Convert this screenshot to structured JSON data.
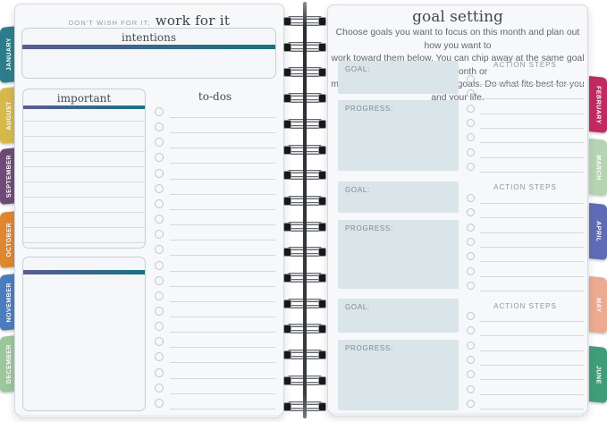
{
  "left_page": {
    "quote": {
      "prefix": "DON'T WISH FOR IT;",
      "emphasis": "work for it"
    },
    "intentions": {
      "title": "intentions"
    },
    "important": {
      "title": "important",
      "ruled_lines": 9
    },
    "todos": {
      "title": "to-dos",
      "rows": 20
    },
    "notes_box": {
      "title": ""
    }
  },
  "right_page": {
    "title": "goal setting",
    "intro_lines": [
      "Choose goals you want to focus on this month and plan out how you want to",
      "work toward them below. You can chip away at the same goal each month or",
      "mix it up and work on different goals. Do what fits best for you and your life."
    ],
    "sections": [
      {
        "goal_label": "GOAL:",
        "progress_label": "PROGRESS:",
        "action_steps_label": "ACTION STEPS",
        "action_rows": 7
      },
      {
        "goal_label": "GOAL:",
        "progress_label": "PROGRESS:",
        "action_steps_label": "ACTION STEPS",
        "action_rows": 7
      },
      {
        "goal_label": "GOAL:",
        "progress_label": "PROGRESS:",
        "action_steps_label": "ACTION STEPS",
        "action_rows": 7
      }
    ]
  },
  "tabs": {
    "left": [
      {
        "label": "JANUARY",
        "color": "#2c7d8b"
      },
      {
        "label": "AUGUST",
        "color": "#d7b84b"
      },
      {
        "label": "SEPTEMBER",
        "color": "#6e4a78"
      },
      {
        "label": "OCTOBER",
        "color": "#de8630"
      },
      {
        "label": "NOVEMBER",
        "color": "#4b7cbd"
      },
      {
        "label": "DECEMBER",
        "color": "#9cc69c"
      }
    ],
    "right": [
      {
        "label": "FEBRUARY",
        "color": "#c02a61"
      },
      {
        "label": "MARCH",
        "color": "#b6d4b2"
      },
      {
        "label": "APRIL",
        "color": "#5e6cb7"
      },
      {
        "label": "MAY",
        "color": "#ecaa8f"
      },
      {
        "label": "JUNE",
        "color": "#3f9e78"
      }
    ]
  },
  "binding": {
    "coils": 16
  },
  "colors": {
    "accent_bar_start": "#5a5c92",
    "accent_bar_end": "#18737f",
    "goal_box_fill": "#dae5e9"
  }
}
